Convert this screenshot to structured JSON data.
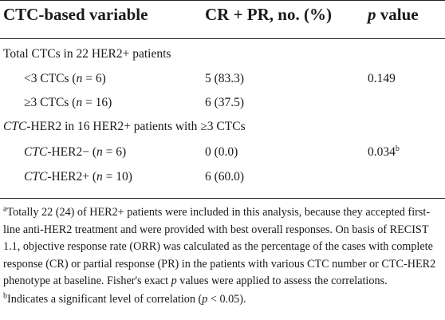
{
  "header": {
    "variable": "CTC-based variable",
    "response": "CR + PR, no. (%)",
    "p_italic": "p",
    "p_rest": " value"
  },
  "sections": [
    {
      "title_italic": "",
      "title_rest": "Total CTCs in 22 HER2+ patients",
      "rows": [
        {
          "label_italic": "",
          "label_pre": "<3 CTCs (",
          "n_italic": "n",
          "label_post": " = 6)",
          "value": "5 (83.3)",
          "p": "0.149",
          "p_sup": ""
        },
        {
          "label_italic": "",
          "label_pre": "≥3 CTCs (",
          "n_italic": "n",
          "label_post": " = 16)",
          "value": "6 (37.5)",
          "p": "",
          "p_sup": ""
        }
      ]
    },
    {
      "title_italic": "CTC",
      "title_rest": "-HER2 in 16 HER2+ patients with ≥3 CTCs",
      "rows": [
        {
          "label_italic": "CTC",
          "label_pre": "-HER2− (",
          "n_italic": "n",
          "label_post": " = 6)",
          "value": "0 (0.0)",
          "p": "0.034",
          "p_sup": "b"
        },
        {
          "label_italic": "CTC",
          "label_pre": "-HER2+ (",
          "n_italic": "n",
          "label_post": " = 10)",
          "value": "6 (60.0)",
          "p": "",
          "p_sup": ""
        }
      ]
    }
  ],
  "footnotes": {
    "a_sup": "a",
    "a_text": "Totally 22 (24) of HER2+ patients were included in this analysis, because they accepted first-line anti-HER2 treatment and were provided with best overall responses. On basis of RECIST 1.1, objective response rate (ORR) was calculated as the percentage of the cases with complete response (CR) or partial response (PR) in the patients with various CTC number or CTC-HER2 phenotype at baseline. Fisher's exact ",
    "a_italic": "p",
    "a_text_end": " values were applied to assess the correlations.",
    "b_sup": "b",
    "b_text": "Indicates a significant level of correlation (",
    "b_italic": "p",
    "b_text_end": " < 0.05)."
  }
}
